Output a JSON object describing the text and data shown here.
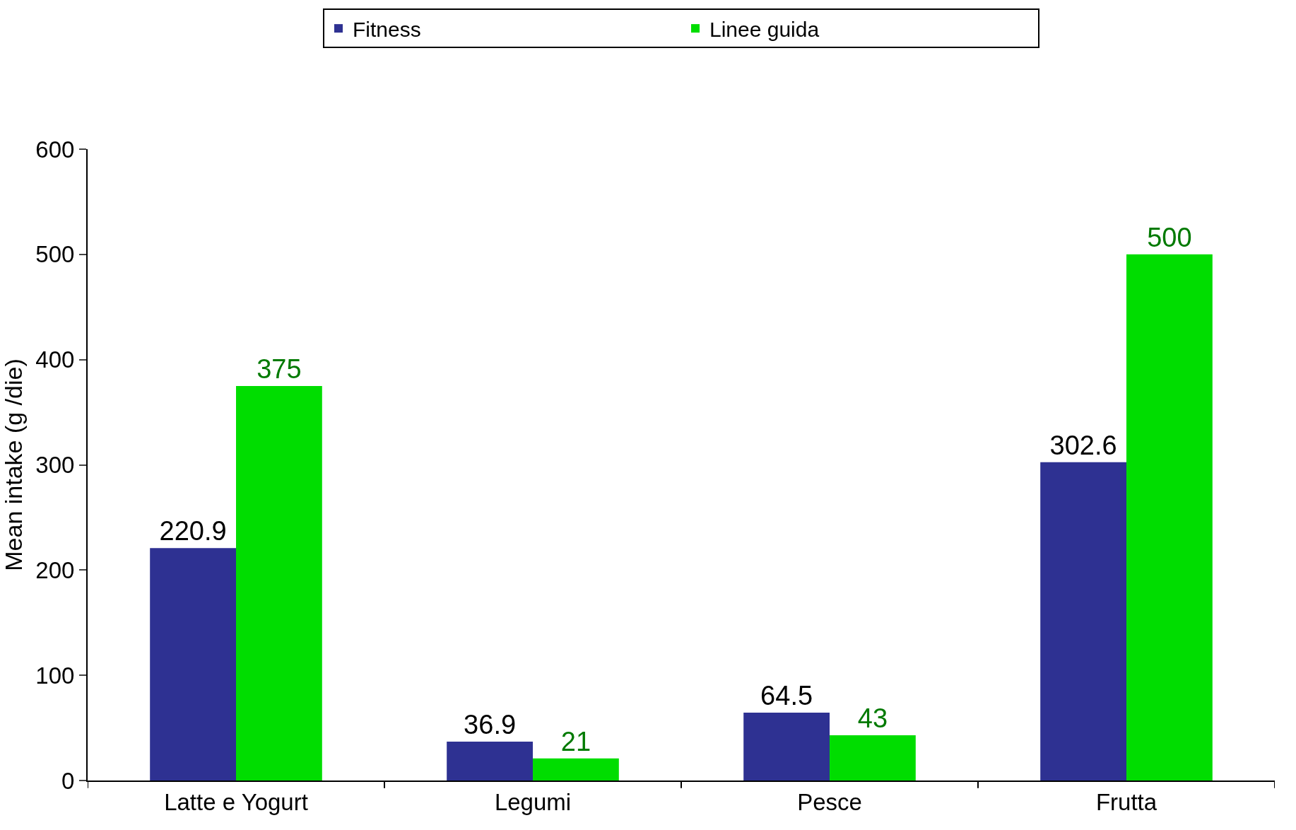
{
  "chart_data": {
    "type": "bar",
    "ylabel": "Mean intake (g /die)",
    "categories": [
      "Latte e Yogurt",
      "Legumi",
      "Pesce",
      "Frutta"
    ],
    "series": [
      {
        "name": "Fitness",
        "color": "#2e3192",
        "values": [
          220.9,
          36.9,
          64.5,
          302.6
        ]
      },
      {
        "name": "Linee guida",
        "color": "#00dd00",
        "values": [
          375,
          21,
          43,
          500
        ]
      }
    ],
    "ylim": [
      0,
      600
    ],
    "yticks": [
      0,
      100,
      200,
      300,
      400,
      500,
      600
    ],
    "data_labels": true,
    "legend": "top"
  }
}
